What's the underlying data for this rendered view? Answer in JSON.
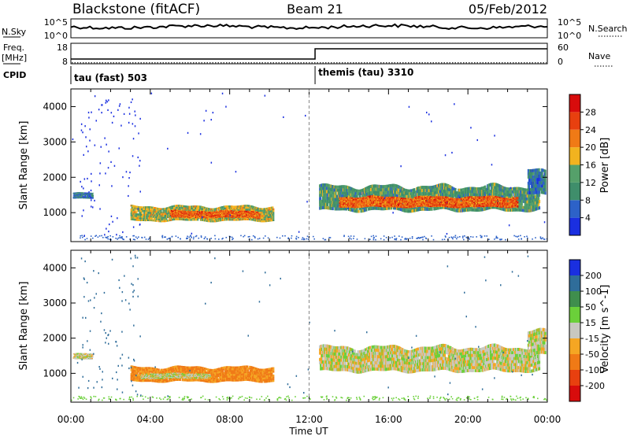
{
  "header": {
    "station": "Blackstone (fitACF)",
    "beam": "Beam 21",
    "date": "05/Feb/2012"
  },
  "noise_panel": {
    "left_label": "N.Sky",
    "left_top_tick": "10^5",
    "left_bottom_tick": "10^0",
    "right_top_tick": "10^5",
    "right_bottom_tick": "10^0",
    "right_label": "N.Search"
  },
  "freq_panel": {
    "left_label_1": "Freq.",
    "left_label_2": "[MHz]",
    "left_top_tick": "18",
    "left_bottom_tick": "8",
    "right_top_tick": "60",
    "right_bottom_tick": "0",
    "right_label": "Nave",
    "freq_level_before": 10.3,
    "freq_level_after": 15.3,
    "nave_level": 3
  },
  "cpid": {
    "label": "CPID",
    "mode_1": "tau (fast) 503",
    "mode_2": "themis (tau) 3310",
    "mode_change_hour": 12.3
  },
  "x_axis": {
    "title": "Time UT",
    "ticks": [
      {
        "hour": 0,
        "label": "00:00"
      },
      {
        "hour": 4,
        "label": "04:00"
      },
      {
        "hour": 8,
        "label": "08:00"
      },
      {
        "hour": 12,
        "label": "12:00"
      },
      {
        "hour": 16,
        "label": "16:00"
      },
      {
        "hour": 20,
        "label": "20:00"
      },
      {
        "hour": 24,
        "label": "00:00"
      }
    ]
  },
  "chart_data": [
    {
      "type": "heatmap",
      "panel": "power",
      "xlabel": "Time UT",
      "ylabel": "Slant Range [km]",
      "xlim": [
        0,
        24
      ],
      "ylim": [
        180,
        4500
      ],
      "yticks": [
        1000,
        2000,
        3000,
        4000
      ],
      "colorbar": {
        "label": "Power [dB]",
        "range": [
          0,
          32
        ],
        "ticks": [
          4,
          8,
          12,
          16,
          20,
          24,
          28
        ],
        "colors": [
          "#1a2fe0",
          "#2d62c8",
          "#3f8e6b",
          "#55a06a",
          "#f2b31f",
          "#f07a16",
          "#e8400f",
          "#d80c0c"
        ]
      },
      "echo_bands": [
        {
          "t0": 0.1,
          "t1": 1.1,
          "r0": 1390,
          "r1": 1560,
          "value": 8
        },
        {
          "t0": 3.0,
          "t1": 10.2,
          "r0": 760,
          "r1": 1180,
          "value": 16
        },
        {
          "t0": 5.0,
          "t1": 9.5,
          "r0": 850,
          "r1": 1050,
          "value": 24
        },
        {
          "t0": 12.5,
          "t1": 23.6,
          "r0": 1050,
          "r1": 1750,
          "value": 12
        },
        {
          "t0": 13.5,
          "t1": 22.5,
          "r0": 1150,
          "r1": 1450,
          "value": 24
        },
        {
          "t0": 23.0,
          "t1": 23.9,
          "r0": 1500,
          "r1": 2200,
          "value": 8
        }
      ]
    },
    {
      "type": "heatmap",
      "panel": "velocity",
      "xlabel": "Time UT",
      "ylabel": "Slant Range [km]",
      "xlim": [
        0,
        24
      ],
      "ylim": [
        180,
        4500
      ],
      "yticks": [
        1000,
        2000,
        3000,
        4000
      ],
      "colorbar": {
        "label": "Velocity [m s^-1]",
        "range": [
          -250,
          250
        ],
        "tick_values": [
          200,
          100,
          50,
          15,
          -15,
          -50,
          -100,
          -200
        ],
        "tick_labels": [
          "200",
          "100",
          "50",
          "15",
          "-15",
          "-50",
          "-100",
          "-200"
        ],
        "colors": [
          "#1a2fe0",
          "#2f6d9a",
          "#3f8e4d",
          "#6bd03a",
          "#c8c8c0",
          "#f5a623",
          "#f07a16",
          "#e8400f",
          "#d80c0c"
        ]
      },
      "echo_bands": [
        {
          "t0": 0.1,
          "t1": 1.1,
          "r0": 1390,
          "r1": 1560,
          "value": 0
        },
        {
          "t0": 3.0,
          "t1": 10.2,
          "r0": 760,
          "r1": 1180,
          "value": -60
        },
        {
          "t0": 3.5,
          "t1": 7.0,
          "r0": 850,
          "r1": 1000,
          "value": 0
        },
        {
          "t0": 12.5,
          "t1": 23.6,
          "r0": 1050,
          "r1": 1750,
          "value": 0
        },
        {
          "t0": 23.0,
          "t1": 23.9,
          "r0": 1500,
          "r1": 2200,
          "value": 0
        }
      ]
    }
  ]
}
